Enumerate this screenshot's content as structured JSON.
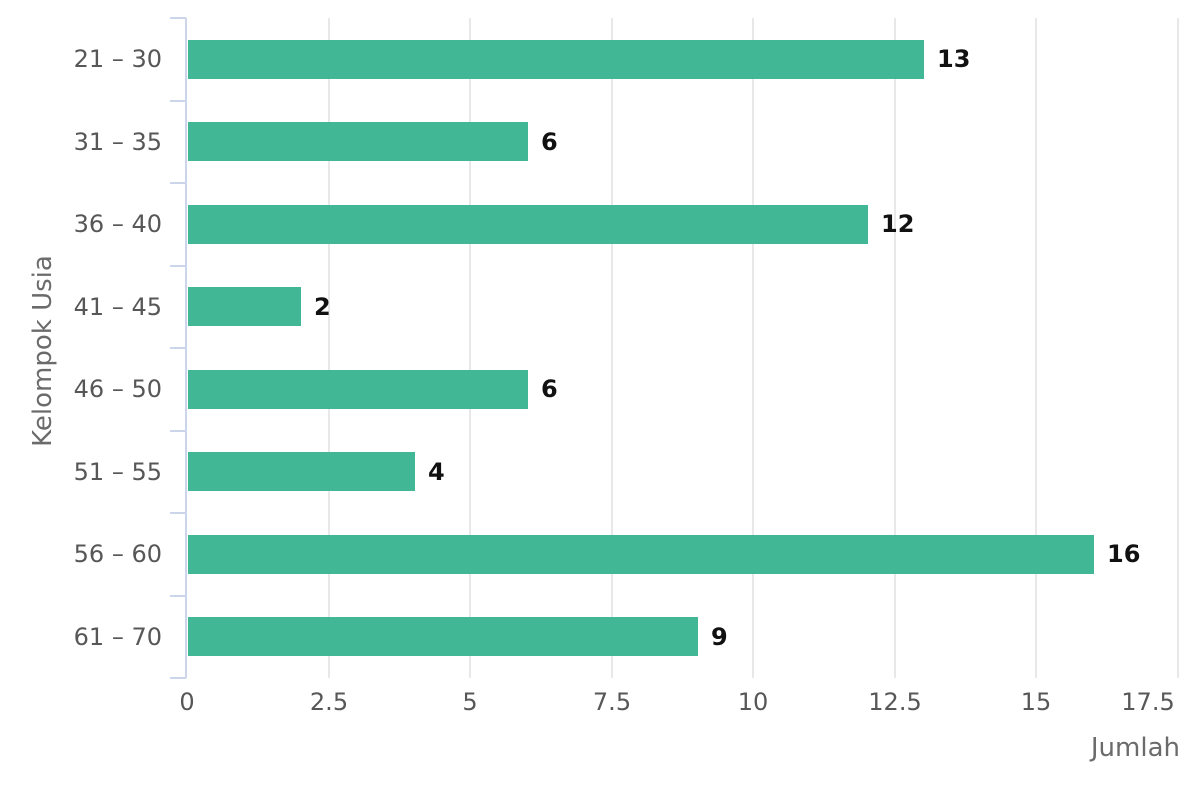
{
  "chart_data": {
    "type": "bar",
    "orientation": "horizontal",
    "title": "",
    "xlabel": "Jumlah",
    "ylabel": "Kelompok Usia",
    "categories": [
      "21 – 30",
      "31 – 35",
      "36 – 40",
      "41 – 45",
      "46 – 50",
      "51 – 55",
      "56 – 60",
      "61 – 70"
    ],
    "values": [
      13,
      6,
      12,
      2,
      6,
      4,
      16,
      9
    ],
    "value_labels": [
      "13",
      "6",
      "12",
      "2",
      "6",
      "4",
      "16",
      "9"
    ],
    "xlim": [
      0,
      17.5
    ],
    "xticks": [
      0,
      2.5,
      5,
      7.5,
      10,
      12.5,
      15,
      17.5
    ],
    "xtick_labels": [
      "0",
      "2.5",
      "5",
      "7.5",
      "10",
      "12.5",
      "15",
      "17.5"
    ],
    "grid": "vertical-only",
    "legend": "none",
    "colors": {
      "bar": "#41b795",
      "axis_line": "#ccd6ea",
      "gridline": "#e8e8e8",
      "tick_label": "#575757",
      "category_label": "#575757",
      "value_label": "#111111",
      "axis_title": "#6b6b6b",
      "background": "#ffffff"
    }
  }
}
